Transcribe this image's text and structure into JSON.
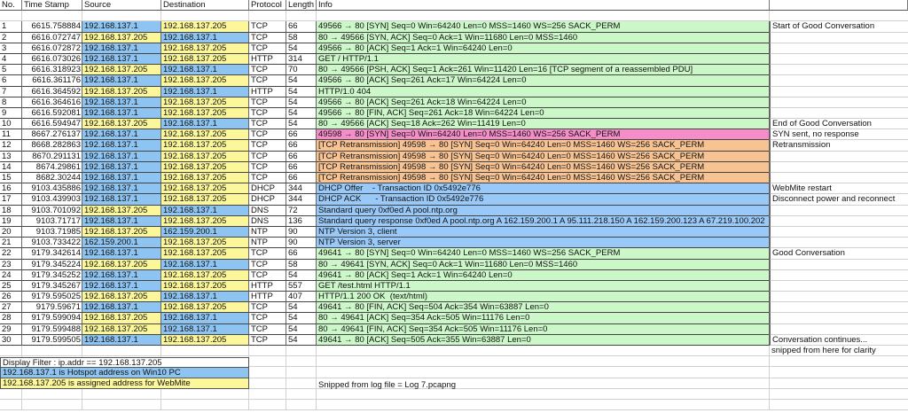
{
  "columns": [
    "No.",
    "Time Stamp",
    "Source",
    "Destination",
    "Protocol",
    "Length",
    "Info",
    ""
  ],
  "colors": {
    "win10_pc": "#8ec4f2",
    "webmite": "#fbf79a",
    "good": "#ccf7c8",
    "syn_no_response": "#f58ec8",
    "retransmission": "#f8c393",
    "restart": "#99c9f8"
  },
  "rows": [
    {
      "no": "1",
      "time": "6615.758884",
      "src": "192.168.137.1",
      "dst": "192.168.137.205",
      "proto": "TCP",
      "len": "66",
      "info": "49566 → 80 [SYN] Seq=0 Win=64240 Len=0 MSS=1460 WS=256 SACK_PERM",
      "note": "Start of Good Conversation",
      "cat": "green"
    },
    {
      "no": "2",
      "time": "6616.072747",
      "src": "192.168.137.205",
      "dst": "192.168.137.1",
      "proto": "TCP",
      "len": "58",
      "info": "80 → 49566 [SYN, ACK] Seq=0 Ack=1 Win=11680 Len=0 MSS=1460",
      "note": "",
      "cat": "green"
    },
    {
      "no": "3",
      "time": "6616.072872",
      "src": "192.168.137.1",
      "dst": "192.168.137.205",
      "proto": "TCP",
      "len": "54",
      "info": "49566 → 80 [ACK] Seq=1 Ack=1 Win=64240 Len=0",
      "note": "",
      "cat": "green"
    },
    {
      "no": "4",
      "time": "6616.073026",
      "src": "192.168.137.1",
      "dst": "192.168.137.205",
      "proto": "HTTP",
      "len": "314",
      "info": "GET / HTTP/1.1",
      "note": "",
      "cat": "green"
    },
    {
      "no": "5",
      "time": "6616.318923",
      "src": "192.168.137.205",
      "dst": "192.168.137.1",
      "proto": "TCP",
      "len": "70",
      "info": "80 → 49566 [PSH, ACK] Seq=1 Ack=261 Win=11420 Len=16 [TCP segment of a reassembled PDU]",
      "note": "",
      "cat": "green"
    },
    {
      "no": "6",
      "time": "6616.361176",
      "src": "192.168.137.1",
      "dst": "192.168.137.205",
      "proto": "TCP",
      "len": "54",
      "info": "49566 → 80 [ACK] Seq=261 Ack=17 Win=64224 Len=0",
      "note": "",
      "cat": "green"
    },
    {
      "no": "7",
      "time": "6616.364592",
      "src": "192.168.137.205",
      "dst": "192.168.137.1",
      "proto": "HTTP",
      "len": "54",
      "info": "HTTP/1.0 404",
      "note": "",
      "cat": "green"
    },
    {
      "no": "8",
      "time": "6616.364616",
      "src": "192.168.137.1",
      "dst": "192.168.137.205",
      "proto": "TCP",
      "len": "54",
      "info": "49566 → 80 [ACK] Seq=261 Ack=18 Win=64224 Len=0",
      "note": "",
      "cat": "green"
    },
    {
      "no": "9",
      "time": "6616.592081",
      "src": "192.168.137.1",
      "dst": "192.168.137.205",
      "proto": "TCP",
      "len": "54",
      "info": "49566 → 80 [FIN, ACK] Seq=261 Ack=18 Win=64224 Len=0",
      "note": "",
      "cat": "green"
    },
    {
      "no": "10",
      "time": "6616.594947",
      "src": "192.168.137.205",
      "dst": "192.168.137.1",
      "proto": "TCP",
      "len": "54",
      "info": "80 → 49566 [ACK] Seq=18 Ack=262 Win=11419 Len=0",
      "note": "End of Good Conversation",
      "cat": "green"
    },
    {
      "no": "11",
      "time": "8667.276137",
      "src": "192.168.137.1",
      "dst": "192.168.137.205",
      "proto": "TCP",
      "len": "66",
      "info": "49598 → 80 [SYN] Seq=0 Win=64240 Len=0 MSS=1460 WS=256 SACK_PERM",
      "note": "SYN sent, no response",
      "cat": "pink"
    },
    {
      "no": "12",
      "time": "8668.282863",
      "src": "192.168.137.1",
      "dst": "192.168.137.205",
      "proto": "TCP",
      "len": "66",
      "info": "[TCP Retransmission] 49598 → 80 [SYN] Seq=0 Win=64240 Len=0 MSS=1460 WS=256 SACK_PERM",
      "note": "Retransmission",
      "cat": "orange"
    },
    {
      "no": "13",
      "time": "8670.291131",
      "src": "192.168.137.1",
      "dst": "192.168.137.205",
      "proto": "TCP",
      "len": "66",
      "info": "[TCP Retransmission] 49598 → 80 [SYN] Seq=0 Win=64240 Len=0 MSS=1460 WS=256 SACK_PERM",
      "note": "",
      "cat": "orange"
    },
    {
      "no": "14",
      "time": "8674.29861",
      "src": "192.168.137.1",
      "dst": "192.168.137.205",
      "proto": "TCP",
      "len": "66",
      "info": "[TCP Retransmission] 49598 → 80 [SYN] Seq=0 Win=64240 Len=0 MSS=1460 WS=256 SACK_PERM",
      "note": "",
      "cat": "orange"
    },
    {
      "no": "15",
      "time": "8682.30244",
      "src": "192.168.137.1",
      "dst": "192.168.137.205",
      "proto": "TCP",
      "len": "66",
      "info": "[TCP Retransmission] 49598 → 80 [SYN] Seq=0 Win=64240 Len=0 MSS=1460 WS=256 SACK_PERM",
      "note": "",
      "cat": "orange"
    },
    {
      "no": "16",
      "time": "9103.435886",
      "src": "192.168.137.1",
      "dst": "192.168.137.205",
      "proto": "DHCP",
      "len": "344",
      "info": "DHCP Offer    - Transaction ID 0x5492e776",
      "note": "WebMite restart",
      "cat": "lblue"
    },
    {
      "no": "17",
      "time": "9103.439903",
      "src": "192.168.137.1",
      "dst": "192.168.137.205",
      "proto": "DHCP",
      "len": "344",
      "info": "DHCP ACK      - Transaction ID 0x5492e776",
      "note": "Disconnect power and reconnect",
      "cat": "lblue"
    },
    {
      "no": "18",
      "time": "9103.701092",
      "src": "192.168.137.205",
      "dst": "192.168.137.1",
      "proto": "DNS",
      "len": "72",
      "info": "Standard query 0xf0ed A pool.ntp.org",
      "note": "",
      "cat": "lblue"
    },
    {
      "no": "19",
      "time": "9103.71717",
      "src": "192.168.137.1",
      "dst": "192.168.137.205",
      "proto": "DNS",
      "len": "136",
      "info": "Standard query response 0xf0ed A pool.ntp.org A 162.159.200.1 A 95.111.218.150 A 162.159.200.123 A 67.219.100.202",
      "note": "",
      "cat": "lblue"
    },
    {
      "no": "20",
      "time": "9103.71985",
      "src": "192.168.137.205",
      "dst": "162.159.200.1",
      "proto": "NTP",
      "len": "90",
      "info": "NTP Version 3, client",
      "note": "",
      "cat": "lblue"
    },
    {
      "no": "21",
      "time": "9103.733422",
      "src": "162.159.200.1",
      "dst": "192.168.137.205",
      "proto": "NTP",
      "len": "90",
      "info": "NTP Version 3, server",
      "note": "",
      "cat": "lblue"
    },
    {
      "no": "22",
      "time": "9179.342614",
      "src": "192.168.137.1",
      "dst": "192.168.137.205",
      "proto": "TCP",
      "len": "66",
      "info": "49641 → 80 [SYN] Seq=0 Win=64240 Len=0 MSS=1460 WS=256 SACK_PERM",
      "note": "Good Conversation",
      "cat": "green"
    },
    {
      "no": "23",
      "time": "9179.345224",
      "src": "192.168.137.205",
      "dst": "192.168.137.1",
      "proto": "TCP",
      "len": "58",
      "info": "80 → 49641 [SYN, ACK] Seq=0 Ack=1 Win=11680 Len=0 MSS=1460",
      "note": "",
      "cat": "green"
    },
    {
      "no": "24",
      "time": "9179.345252",
      "src": "192.168.137.1",
      "dst": "192.168.137.205",
      "proto": "TCP",
      "len": "54",
      "info": "49641 → 80 [ACK] Seq=1 Ack=1 Win=64240 Len=0",
      "note": "",
      "cat": "green"
    },
    {
      "no": "25",
      "time": "9179.345267",
      "src": "192.168.137.1",
      "dst": "192.168.137.205",
      "proto": "HTTP",
      "len": "557",
      "info": "GET /test.html HTTP/1.1",
      "note": "",
      "cat": "green"
    },
    {
      "no": "26",
      "time": "9179.595025",
      "src": "192.168.137.205",
      "dst": "192.168.137.1",
      "proto": "HTTP",
      "len": "407",
      "info": "HTTP/1.1 200 OK  (text/html)",
      "note": "",
      "cat": "green"
    },
    {
      "no": "27",
      "time": "9179.59671",
      "src": "192.168.137.1",
      "dst": "192.168.137.205",
      "proto": "TCP",
      "len": "54",
      "info": "49641 → 80 [FIN, ACK] Seq=504 Ack=354 Win=63887 Len=0",
      "note": "",
      "cat": "green"
    },
    {
      "no": "28",
      "time": "9179.599094",
      "src": "192.168.137.205",
      "dst": "192.168.137.1",
      "proto": "TCP",
      "len": "54",
      "info": "80 → 49641 [ACK] Seq=354 Ack=505 Win=11176 Len=0",
      "note": "",
      "cat": "green"
    },
    {
      "no": "29",
      "time": "9179.599488",
      "src": "192.168.137.205",
      "dst": "192.168.137.1",
      "proto": "TCP",
      "len": "54",
      "info": "80 → 49641 [FIN, ACK] Seq=354 Ack=505 Win=11176 Len=0",
      "note": "",
      "cat": "green"
    },
    {
      "no": "30",
      "time": "9179.599505",
      "src": "192.168.137.1",
      "dst": "192.168.137.205",
      "proto": "TCP",
      "len": "54",
      "info": "49641 → 80 [ACK] Seq=505 Ack=355 Win=63887 Len=0",
      "note": "Conversation continues...",
      "cat": "green"
    }
  ],
  "extra_note": "snipped from here for clarity",
  "legend": {
    "filter": "Display Filter : ip.addr == 192.168.137.205",
    "pc": "192.168.137.1 is Hotspot address on Win10 PC",
    "webmite": "192.168.137.205 is assigned address for WebMite"
  },
  "snipped_from": "Snipped from log file = Log 7.pcapng"
}
